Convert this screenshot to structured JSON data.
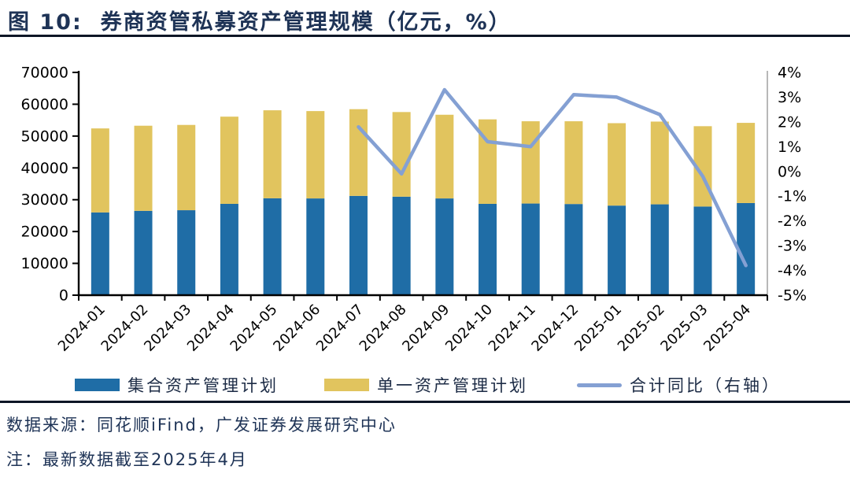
{
  "title": "图 10:  券商资管私募资产管理规模（亿元，%）",
  "footer": {
    "source": "数据来源：同花顺iFind，广发证券发展研究中心",
    "note": "注：最新数据截至2025年4月"
  },
  "colors": {
    "title_text": "#1E3356",
    "footer_text": "#1E3356",
    "rule": "#0E1626",
    "axis": "#000000",
    "right_axis_line": "#A6A6A6",
    "tick_label": "#000000",
    "bar_blue": "#1F6DA6",
    "bar_yellow": "#E1C45E",
    "line_blue": "#84A0D3"
  },
  "chart_data": {
    "type": "bar",
    "stacked": true,
    "title": "券商资管私募资产管理规模（亿元，%）",
    "categories": [
      "2024-01",
      "2024-02",
      "2024-03",
      "2024-04",
      "2024-05",
      "2024-06",
      "2024-07",
      "2024-08",
      "2024-09",
      "2024-10",
      "2024-11",
      "2024-12",
      "2025-01",
      "2025-02",
      "2025-03",
      "2025-04"
    ],
    "series": [
      {
        "name": "集合资产管理计划",
        "type": "bar",
        "axis": "left",
        "color": "#1F6DA6",
        "values": [
          26000,
          26500,
          26700,
          28700,
          30450,
          30400,
          31200,
          30950,
          30400,
          28700,
          28800,
          28650,
          28150,
          28550,
          27850,
          28950
        ]
      },
      {
        "name": "单一资产管理计划",
        "type": "bar",
        "axis": "left",
        "color": "#E1C45E",
        "values": [
          26400,
          26750,
          26800,
          27400,
          27650,
          27450,
          27250,
          26600,
          26300,
          26550,
          25850,
          26000,
          25900,
          26000,
          25250,
          25200
        ]
      },
      {
        "name": "合计同比（右轴）",
        "type": "line",
        "axis": "right",
        "color": "#84A0D3",
        "values": [
          null,
          null,
          null,
          null,
          null,
          null,
          1.8,
          -0.1,
          3.3,
          1.2,
          1.0,
          3.1,
          3.0,
          2.3,
          -0.2,
          -3.8
        ]
      }
    ],
    "left_axis": {
      "min": 0,
      "max": 70000,
      "step": 10000,
      "labels": [
        "70000",
        "60000",
        "50000",
        "40000",
        "30000",
        "20000",
        "10000",
        "0"
      ]
    },
    "right_axis": {
      "min": -5,
      "max": 4,
      "step": 1,
      "labels": [
        "4%",
        "3%",
        "2%",
        "1%",
        "0%",
        "-1%",
        "-2%",
        "-3%",
        "-4%",
        "-5%"
      ]
    },
    "legend_position": "bottom",
    "grid": false
  }
}
